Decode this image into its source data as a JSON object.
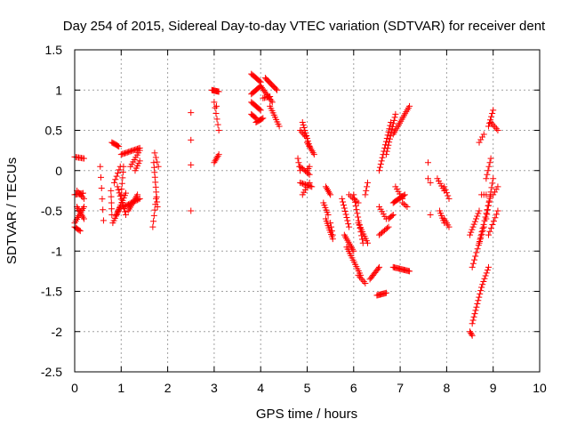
{
  "chart_data": {
    "type": "scatter",
    "title": "Day 254 of 2015, Sidereal Day-to-day VTEC variation (SDTVAR) for receiver dent",
    "xlabel": "GPS time / hours",
    "ylabel": "SDTVAR / TECUs",
    "xlim": [
      0,
      10
    ],
    "ylim": [
      -2.5,
      1.5
    ],
    "xticks": [
      0,
      1,
      2,
      3,
      4,
      5,
      6,
      7,
      8,
      9,
      10
    ],
    "yticks": [
      -2.5,
      -2,
      -1.5,
      -1,
      -0.5,
      0,
      0.5,
      1,
      1.5
    ],
    "grid": true,
    "marker": "+",
    "color": "#ff0000",
    "segments": [
      [
        0.0,
        0.17,
        0.2,
        0.15,
        8
      ],
      [
        0.0,
        -0.7,
        0.12,
        -0.75,
        6
      ],
      [
        0.0,
        -0.3,
        0.18,
        -0.28,
        8
      ],
      [
        0.0,
        -0.65,
        0.2,
        -0.45,
        10
      ],
      [
        0.05,
        -0.45,
        0.2,
        -0.6,
        8
      ],
      [
        0.05,
        -0.25,
        0.2,
        -0.35,
        6
      ],
      [
        0.55,
        0.05,
        0.62,
        -0.62,
        6
      ],
      [
        0.78,
        -0.25,
        0.8,
        -0.55,
        5
      ],
      [
        0.8,
        0.35,
        0.95,
        0.3,
        8
      ],
      [
        0.82,
        -0.65,
        0.98,
        -0.45,
        8
      ],
      [
        0.85,
        -0.15,
        0.98,
        0.05,
        6
      ],
      [
        0.9,
        -0.55,
        1.1,
        -0.28,
        10
      ],
      [
        0.92,
        -0.2,
        1.1,
        -0.55,
        10
      ],
      [
        1.0,
        0.2,
        1.4,
        0.28,
        16
      ],
      [
        1.0,
        -0.3,
        1.05,
        0.05,
        6
      ],
      [
        1.05,
        -0.45,
        1.4,
        -0.35,
        14
      ],
      [
        1.15,
        -0.5,
        1.35,
        -0.3,
        10
      ],
      [
        1.2,
        0.05,
        1.4,
        0.25,
        8
      ],
      [
        1.3,
        0.0,
        1.4,
        0.12,
        5
      ],
      [
        1.68,
        -0.7,
        1.75,
        -0.35,
        6
      ],
      [
        1.7,
        0.1,
        1.78,
        -0.45,
        10
      ],
      [
        1.72,
        0.22,
        1.8,
        0.05,
        4
      ],
      [
        2.5,
        0.72,
        2.5,
        0.72,
        1
      ],
      [
        2.5,
        0.38,
        2.5,
        0.38,
        1
      ],
      [
        2.5,
        0.07,
        2.5,
        0.07,
        1
      ],
      [
        2.5,
        -0.5,
        2.5,
        -0.5,
        1
      ],
      [
        2.95,
        1.0,
        3.1,
        0.98,
        10
      ],
      [
        3.0,
        0.1,
        3.1,
        0.2,
        6
      ],
      [
        3.0,
        0.85,
        3.1,
        0.5,
        6
      ],
      [
        3.05,
        0.8,
        3.1,
        0.8,
        1
      ],
      [
        3.8,
        1.2,
        4.0,
        1.1,
        10
      ],
      [
        3.8,
        0.95,
        4.0,
        1.05,
        10
      ],
      [
        3.8,
        0.7,
        3.9,
        0.65,
        6
      ],
      [
        3.8,
        0.85,
        4.0,
        0.75,
        10
      ],
      [
        3.9,
        0.6,
        4.05,
        0.65,
        8
      ],
      [
        4.0,
        1.05,
        4.25,
        0.85,
        12
      ],
      [
        4.1,
        1.15,
        4.35,
        1.0,
        12
      ],
      [
        4.05,
        0.9,
        4.2,
        0.92,
        6
      ],
      [
        4.2,
        0.8,
        4.4,
        0.55,
        10
      ],
      [
        4.9,
        0.6,
        5.05,
        0.3,
        10
      ],
      [
        4.85,
        0.5,
        5.0,
        0.4,
        6
      ],
      [
        5.0,
        0.35,
        5.15,
        0.2,
        8
      ],
      [
        4.8,
        0.15,
        4.85,
        0.0,
        4
      ],
      [
        4.85,
        0.05,
        5.05,
        -0.05,
        8
      ],
      [
        4.85,
        -0.15,
        5.1,
        -0.2,
        10
      ],
      [
        4.9,
        -0.3,
        5.05,
        -0.15,
        6
      ],
      [
        5.0,
        0.0,
        5.05,
        0.05,
        3
      ],
      [
        5.4,
        -0.2,
        5.5,
        -0.3,
        6
      ],
      [
        5.35,
        -0.4,
        5.45,
        -0.55,
        6
      ],
      [
        5.4,
        -0.6,
        5.55,
        -0.85,
        10
      ],
      [
        5.5,
        -0.65,
        5.55,
        -0.8,
        4
      ],
      [
        5.75,
        -0.35,
        5.9,
        -0.7,
        10
      ],
      [
        5.8,
        -0.8,
        6.0,
        -1.0,
        10
      ],
      [
        5.85,
        -0.95,
        6.15,
        -1.3,
        14
      ],
      [
        6.1,
        -1.3,
        6.25,
        -1.4,
        6
      ],
      [
        6.0,
        -0.3,
        6.2,
        -0.9,
        14
      ],
      [
        6.1,
        -0.65,
        6.3,
        -0.9,
        10
      ],
      [
        5.9,
        -0.3,
        6.1,
        -0.4,
        6
      ],
      [
        6.25,
        -0.3,
        6.3,
        -0.15,
        4
      ],
      [
        6.35,
        -1.35,
        6.55,
        -1.2,
        10
      ],
      [
        6.5,
        -1.55,
        6.7,
        -1.52,
        10
      ],
      [
        6.55,
        -0.8,
        6.75,
        -0.7,
        8
      ],
      [
        6.55,
        -0.45,
        6.7,
        -0.6,
        6
      ],
      [
        6.55,
        0.0,
        6.8,
        0.6,
        16
      ],
      [
        6.7,
        0.2,
        6.9,
        0.7,
        14
      ],
      [
        6.85,
        -1.2,
        7.2,
        -1.25,
        16
      ],
      [
        6.85,
        -0.4,
        7.1,
        -0.3,
        12
      ],
      [
        6.75,
        -0.6,
        6.85,
        -0.55,
        5
      ],
      [
        6.85,
        0.45,
        7.2,
        0.8,
        16
      ],
      [
        6.9,
        -0.2,
        7.05,
        -0.35,
        6
      ],
      [
        7.05,
        -0.4,
        7.15,
        -0.45,
        4
      ],
      [
        7.6,
        0.1,
        7.65,
        0.1,
        1
      ],
      [
        7.6,
        -0.1,
        7.65,
        -0.15,
        2
      ],
      [
        7.65,
        -0.55,
        7.65,
        -0.55,
        1
      ],
      [
        7.8,
        -0.1,
        7.95,
        -0.25,
        6
      ],
      [
        7.85,
        -0.5,
        7.95,
        -0.65,
        6
      ],
      [
        7.95,
        -0.6,
        8.05,
        -0.7,
        5
      ],
      [
        7.95,
        -0.2,
        8.05,
        -0.35,
        5
      ],
      [
        8.5,
        -2.0,
        8.55,
        -2.05,
        4
      ],
      [
        8.55,
        -1.9,
        8.75,
        -1.45,
        12
      ],
      [
        8.75,
        -1.45,
        8.9,
        -1.2,
        8
      ],
      [
        8.5,
        -0.8,
        8.7,
        -0.5,
        10
      ],
      [
        8.55,
        -1.2,
        8.8,
        -0.7,
        12
      ],
      [
        8.7,
        -0.9,
        8.95,
        -0.3,
        14
      ],
      [
        8.85,
        -0.6,
        9.0,
        -0.1,
        10
      ],
      [
        8.9,
        -0.8,
        9.1,
        -0.5,
        8
      ],
      [
        8.75,
        -0.3,
        8.85,
        -0.3,
        3
      ],
      [
        8.85,
        -0.1,
        8.95,
        0.15,
        6
      ],
      [
        8.7,
        0.35,
        8.8,
        0.45,
        4
      ],
      [
        8.9,
        0.55,
        9.0,
        0.75,
        6
      ],
      [
        8.95,
        0.6,
        9.1,
        0.5,
        6
      ],
      [
        9.0,
        -0.3,
        9.1,
        -0.2,
        4
      ]
    ]
  }
}
